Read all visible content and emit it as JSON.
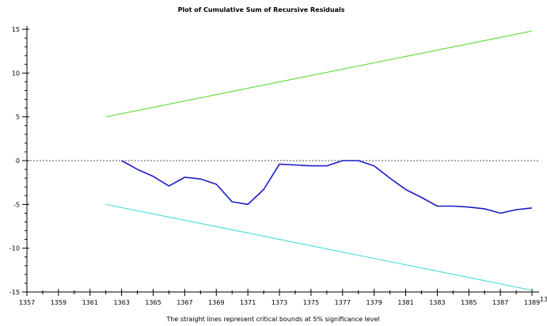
{
  "chart_data": {
    "type": "line",
    "title": "Plot of Cumulative Sum of Recursive Residuals",
    "caption": "The straight lines represent critical bounds at 5% significance level",
    "xlabel": "",
    "ylabel": "",
    "xlim": [
      1357,
      1389
    ],
    "ylim": [
      -15,
      15
    ],
    "x_ticks": [
      1357,
      1359,
      1361,
      1363,
      1365,
      1367,
      1369,
      1371,
      1373,
      1375,
      1377,
      1379,
      1381,
      1383,
      1385,
      1387,
      1389
    ],
    "x_tick_labels": [
      "1357",
      "1359",
      "1361",
      "1363",
      "1365",
      "1367",
      "1369",
      "1371",
      "1373",
      "1375",
      "1377",
      "1379",
      "1381",
      "1383",
      "1385",
      "1387",
      "1389"
    ],
    "x_tick_label_partial": "13",
    "y_ticks": [
      -15,
      -10,
      -5,
      0,
      5,
      10,
      15
    ],
    "y_tick_labels": [
      "-15",
      "-10",
      "-5",
      "0",
      "5",
      "10",
      "15"
    ],
    "grid": false,
    "zero_line": "dotted",
    "series": [
      {
        "role": "cusum",
        "color": "#1a1ac8",
        "x": [
          1363,
          1364,
          1365,
          1366,
          1367,
          1368,
          1369,
          1370,
          1371,
          1372,
          1373,
          1374,
          1375,
          1376,
          1377,
          1378,
          1379,
          1380,
          1381,
          1382,
          1383,
          1384,
          1385,
          1386,
          1387,
          1388,
          1389
        ],
        "values": [
          0.0,
          -1.0,
          -1.8,
          -2.9,
          -1.9,
          -2.1,
          -2.7,
          -4.7,
          -5.0,
          -3.3,
          -0.4,
          -0.5,
          -0.6,
          -0.6,
          0.0,
          0.0,
          -0.6,
          -2.0,
          -3.3,
          -4.2,
          -5.2,
          -5.2,
          -5.3,
          -5.5,
          -6.0,
          -5.6,
          -5.4
        ]
      },
      {
        "role": "upper-bound",
        "color": "#66dd44",
        "x": [
          1362,
          1389
        ],
        "values": [
          5.0,
          14.8
        ]
      },
      {
        "role": "lower-bound",
        "color": "#55dddd",
        "x": [
          1362,
          1389
        ],
        "values": [
          -5.0,
          -14.8
        ]
      }
    ]
  }
}
